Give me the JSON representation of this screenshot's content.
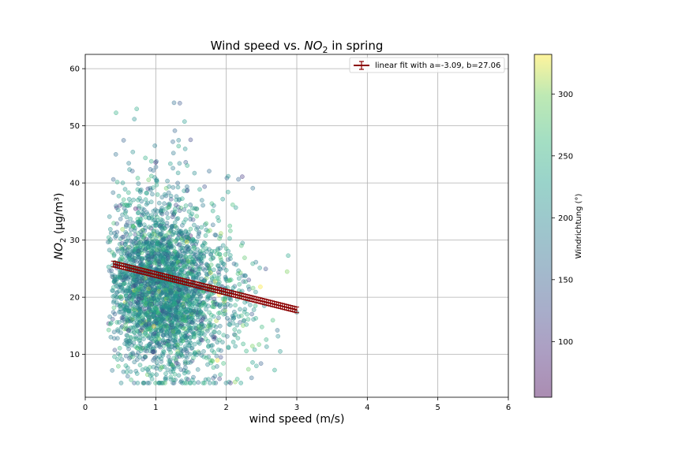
{
  "chart_data": {
    "type": "scatter",
    "title": "Wind speed vs. NO₂ in spring",
    "title_parts": {
      "prefix": "Wind speed vs. ",
      "var": "NO",
      "sub": "2",
      "suffix": " in spring"
    },
    "xlabel": "wind speed (m/s)",
    "ylabel": "NO₂ (µg/m³)",
    "ylabel_parts": {
      "var": "NO",
      "sub": "2",
      "suffix": " (µg/m³)"
    },
    "xlim": [
      0,
      6
    ],
    "ylim": [
      2.5,
      62.5
    ],
    "xticks": [
      0,
      1,
      2,
      3,
      4,
      5,
      6
    ],
    "yticks": [
      10,
      20,
      30,
      40,
      50,
      60
    ],
    "grid": true,
    "legend_position": "top-right",
    "scatter_points": {
      "point_count": 3000,
      "x_range": [
        0.3,
        3.0
      ],
      "y_range": [
        5,
        60
      ],
      "color_variable": "Windrichtung (°)",
      "marker": "circle",
      "alpha": 0.35
    },
    "fit": {
      "label": "linear fit with a=-3.09, b=27.06",
      "a": -3.09,
      "b": 27.06,
      "x_range": [
        0.4,
        3.0
      ],
      "color": "#8b0000",
      "error_bar": 0.5
    },
    "colorbar": {
      "label": "Windrichtung (°)",
      "range": [
        55,
        332
      ],
      "ticks": [
        100,
        150,
        200,
        250,
        300
      ],
      "colormap": "viridis"
    }
  }
}
